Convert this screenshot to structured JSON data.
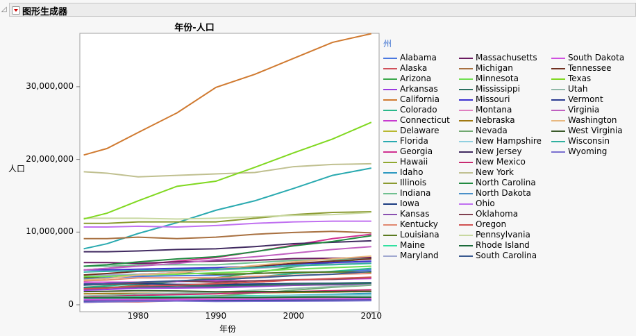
{
  "header": {
    "title": "图形生成器"
  },
  "chart_data": {
    "type": "line",
    "title": "年份-人口",
    "xlabel": "年份",
    "ylabel": "人口",
    "xlim": [
      1972.5,
      2011
    ],
    "ylim": [
      0,
      38300000
    ],
    "xticks": [
      1980,
      1990,
      2000,
      2010
    ],
    "yticks": [
      0,
      10000000,
      20000000,
      30000000
    ],
    "ytick_labels": [
      "0",
      "10,000,000",
      "20,000,000",
      "30,000,000"
    ],
    "legend_title": "州",
    "legend_position": "right",
    "x": [
      1973,
      1976,
      1980,
      1985,
      1990,
      1995,
      2000,
      2005,
      2010
    ],
    "series": [
      {
        "name": "Alabama",
        "color": "#4a78e0",
        "values": [
          3.5,
          3.7,
          3.9,
          4.0,
          4.05,
          4.3,
          4.45,
          4.55,
          4.8
        ]
      },
      {
        "name": "Alaska",
        "color": "#d0505a",
        "values": [
          0.33,
          0.4,
          0.4,
          0.54,
          0.55,
          0.6,
          0.63,
          0.66,
          0.71
        ]
      },
      {
        "name": "Arizona",
        "color": "#3aa84a",
        "values": [
          2.1,
          2.3,
          2.7,
          3.2,
          3.7,
          4.4,
          5.2,
          5.8,
          6.4
        ]
      },
      {
        "name": "Arkansas",
        "color": "#9a3ae0",
        "values": [
          2.0,
          2.1,
          2.3,
          2.3,
          2.35,
          2.5,
          2.67,
          2.77,
          2.9
        ]
      },
      {
        "name": "California",
        "color": "#d07a30",
        "values": [
          20.6,
          21.5,
          23.7,
          26.4,
          29.9,
          31.7,
          33.9,
          36.1,
          37.3
        ]
      },
      {
        "name": "Colorado",
        "color": "#2ab88a",
        "values": [
          2.4,
          2.6,
          2.9,
          3.2,
          3.3,
          3.8,
          4.3,
          4.6,
          5.0
        ]
      },
      {
        "name": "Connecticut",
        "color": "#c83ad0",
        "values": [
          3.1,
          3.1,
          3.1,
          3.2,
          3.3,
          3.3,
          3.4,
          3.5,
          3.6
        ]
      },
      {
        "name": "Delaware",
        "color": "#b8b830",
        "values": [
          0.57,
          0.58,
          0.59,
          0.62,
          0.67,
          0.73,
          0.78,
          0.84,
          0.9
        ]
      },
      {
        "name": "Florida",
        "color": "#2aaab0",
        "values": [
          7.7,
          8.4,
          9.8,
          11.3,
          13.0,
          14.3,
          16.0,
          17.8,
          18.8
        ]
      },
      {
        "name": "Georgia",
        "color": "#d03090",
        "values": [
          4.8,
          5.0,
          5.5,
          6.0,
          6.5,
          7.3,
          8.2,
          9.1,
          9.7
        ]
      },
      {
        "name": "Hawaii",
        "color": "#90a830",
        "values": [
          0.85,
          0.89,
          0.97,
          1.04,
          1.11,
          1.19,
          1.21,
          1.27,
          1.36
        ]
      },
      {
        "name": "Idaho",
        "color": "#2a98c0",
        "values": [
          0.77,
          0.83,
          0.94,
          1.0,
          1.0,
          1.18,
          1.3,
          1.43,
          1.57
        ]
      },
      {
        "name": "Illinois",
        "color": "#8a9a30",
        "values": [
          11.2,
          11.2,
          11.4,
          11.4,
          11.4,
          11.9,
          12.4,
          12.7,
          12.8
        ]
      },
      {
        "name": "Indiana",
        "color": "#70c090",
        "values": [
          5.3,
          5.3,
          5.5,
          5.5,
          5.5,
          5.8,
          6.1,
          6.2,
          6.5
        ]
      },
      {
        "name": "Iowa",
        "color": "#1a3a80",
        "values": [
          2.85,
          2.87,
          2.9,
          2.8,
          2.78,
          2.85,
          2.93,
          2.96,
          3.05
        ]
      },
      {
        "name": "Kansas",
        "color": "#8a50b0",
        "values": [
          2.3,
          2.3,
          2.4,
          2.4,
          2.5,
          2.6,
          2.69,
          2.75,
          2.85
        ]
      },
      {
        "name": "Kentucky",
        "color": "#e08870",
        "values": [
          3.3,
          3.4,
          3.7,
          3.7,
          3.7,
          3.9,
          4.05,
          4.2,
          4.3
        ]
      },
      {
        "name": "Louisiana",
        "color": "#5a7a20",
        "values": [
          3.7,
          3.9,
          4.2,
          4.4,
          4.2,
          4.3,
          4.47,
          4.5,
          4.5
        ]
      },
      {
        "name": "Maine",
        "color": "#30e0a0",
        "values": [
          1.05,
          1.08,
          1.13,
          1.16,
          1.23,
          1.24,
          1.28,
          1.32,
          1.33
        ]
      },
      {
        "name": "Maryland",
        "color": "#a0a8d0",
        "values": [
          4.1,
          4.1,
          4.2,
          4.4,
          4.8,
          5.0,
          5.3,
          5.6,
          5.8
        ]
      },
      {
        "name": "Massachusetts",
        "color": "#6a1a60",
        "values": [
          5.8,
          5.8,
          5.7,
          5.9,
          6.0,
          6.1,
          6.35,
          6.4,
          6.5
        ]
      },
      {
        "name": "Michigan",
        "color": "#a87040",
        "values": [
          9.1,
          9.1,
          9.3,
          9.1,
          9.3,
          9.7,
          9.95,
          10.1,
          9.9
        ]
      },
      {
        "name": "Minnesota",
        "color": "#70e050",
        "values": [
          3.9,
          3.9,
          4.1,
          4.2,
          4.4,
          4.6,
          4.9,
          5.1,
          5.3
        ]
      },
      {
        "name": "Mississippi",
        "color": "#2a7060",
        "values": [
          2.3,
          2.4,
          2.5,
          2.6,
          2.6,
          2.7,
          2.85,
          2.9,
          2.97
        ]
      },
      {
        "name": "Missouri",
        "color": "#3a30d0",
        "values": [
          4.8,
          4.8,
          4.9,
          5.0,
          5.1,
          5.3,
          5.6,
          5.8,
          6.0
        ]
      },
      {
        "name": "Montana",
        "color": "#e080c0",
        "values": [
          0.73,
          0.75,
          0.79,
          0.81,
          0.8,
          0.87,
          0.9,
          0.94,
          0.99
        ]
      },
      {
        "name": "Nebraska",
        "color": "#a07810",
        "values": [
          1.5,
          1.55,
          1.57,
          1.58,
          1.58,
          1.64,
          1.71,
          1.76,
          1.83
        ]
      },
      {
        "name": "Nevada",
        "color": "#70a870",
        "values": [
          0.55,
          0.62,
          0.8,
          0.95,
          1.2,
          1.6,
          2.0,
          2.4,
          2.7
        ]
      },
      {
        "name": "New Hampshire",
        "color": "#90d0e0",
        "values": [
          0.78,
          0.82,
          0.92,
          1.0,
          1.11,
          1.16,
          1.24,
          1.3,
          1.32
        ]
      },
      {
        "name": "New Jersey",
        "color": "#402a60",
        "values": [
          7.3,
          7.3,
          7.4,
          7.6,
          7.7,
          8.0,
          8.4,
          8.6,
          8.8
        ]
      },
      {
        "name": "New Mexico",
        "color": "#c82a70",
        "values": [
          1.1,
          1.2,
          1.3,
          1.4,
          1.5,
          1.7,
          1.82,
          1.93,
          2.06
        ]
      },
      {
        "name": "New York",
        "color": "#c0c090",
        "values": [
          18.3,
          18.1,
          17.6,
          17.8,
          18.0,
          18.2,
          19.0,
          19.3,
          19.4
        ]
      },
      {
        "name": "North Carolina",
        "color": "#208a40",
        "values": [
          5.3,
          5.5,
          5.9,
          6.3,
          6.6,
          7.3,
          8.1,
          8.7,
          9.5
        ]
      },
      {
        "name": "North Dakota",
        "color": "#4a90c8",
        "values": [
          0.63,
          0.65,
          0.65,
          0.68,
          0.64,
          0.64,
          0.64,
          0.64,
          0.67
        ]
      },
      {
        "name": "Ohio",
        "color": "#c070f0",
        "values": [
          10.7,
          10.7,
          10.8,
          10.7,
          10.9,
          11.2,
          11.4,
          11.5,
          11.5
        ]
      },
      {
        "name": "Oklahoma",
        "color": "#804050",
        "values": [
          2.7,
          2.8,
          3.0,
          3.3,
          3.1,
          3.3,
          3.45,
          3.5,
          3.75
        ]
      },
      {
        "name": "Oregon",
        "color": "#d05050",
        "values": [
          2.2,
          2.3,
          2.6,
          2.7,
          2.9,
          3.1,
          3.4,
          3.6,
          3.8
        ]
      },
      {
        "name": "Pennsylvania",
        "color": "#c8d8a0",
        "values": [
          11.9,
          11.9,
          11.9,
          11.8,
          11.9,
          12.1,
          12.3,
          12.4,
          12.7
        ]
      },
      {
        "name": "Rhode Island",
        "color": "#1a6a3a",
        "values": [
          0.95,
          0.94,
          0.95,
          0.97,
          1.0,
          0.99,
          1.05,
          1.06,
          1.05
        ]
      },
      {
        "name": "South Carolina",
        "color": "#3a5a90",
        "values": [
          2.7,
          2.9,
          3.1,
          3.3,
          3.5,
          3.7,
          4.0,
          4.2,
          4.6
        ]
      },
      {
        "name": "South Dakota",
        "color": "#d050e0",
        "values": [
          0.68,
          0.69,
          0.69,
          0.7,
          0.7,
          0.73,
          0.755,
          0.775,
          0.815
        ]
      },
      {
        "name": "Tennessee",
        "color": "#703020",
        "values": [
          4.1,
          4.3,
          4.6,
          4.7,
          4.9,
          5.3,
          5.7,
          6.0,
          6.3
        ]
      },
      {
        "name": "Texas",
        "color": "#80d820",
        "values": [
          11.8,
          12.6,
          14.3,
          16.3,
          17.0,
          18.9,
          20.9,
          22.8,
          25.1
        ]
      },
      {
        "name": "Utah",
        "color": "#90b8a8",
        "values": [
          1.2,
          1.3,
          1.5,
          1.6,
          1.7,
          2.0,
          2.24,
          2.5,
          2.76
        ]
      },
      {
        "name": "Vermont",
        "color": "#2a3a90",
        "values": [
          0.46,
          0.48,
          0.51,
          0.53,
          0.56,
          0.58,
          0.61,
          0.62,
          0.63
        ]
      },
      {
        "name": "Virginia",
        "color": "#c060c0",
        "values": [
          4.8,
          5.0,
          5.3,
          5.7,
          6.2,
          6.6,
          7.1,
          7.6,
          8.0
        ]
      },
      {
        "name": "Washington",
        "color": "#e8b880",
        "values": [
          3.4,
          3.6,
          4.1,
          4.4,
          4.9,
          5.4,
          5.9,
          6.3,
          6.7
        ]
      },
      {
        "name": "West Virginia",
        "color": "#3a5a2a",
        "values": [
          1.8,
          1.85,
          1.95,
          1.9,
          1.79,
          1.82,
          1.81,
          1.82,
          1.85
        ]
      },
      {
        "name": "Wisconsin",
        "color": "#30b0a0",
        "values": [
          4.5,
          4.6,
          4.7,
          4.8,
          4.9,
          5.1,
          5.4,
          5.5,
          5.7
        ]
      },
      {
        "name": "Wyoming",
        "color": "#7a70d0",
        "values": [
          0.35,
          0.4,
          0.47,
          0.51,
          0.45,
          0.48,
          0.49,
          0.51,
          0.56
        ]
      }
    ],
    "value_unit_multiplier": 1000000
  }
}
